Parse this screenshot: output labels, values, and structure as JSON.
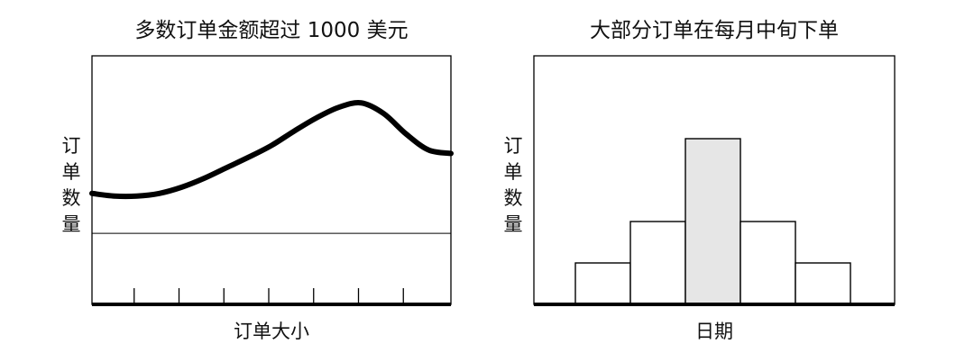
{
  "chart_data": [
    {
      "type": "line",
      "title": "多数订单金额超过 1000 美元",
      "xlabel": "订单大小",
      "ylabel": "订单数量",
      "x_ticks": 7,
      "reference_line": true,
      "series": [
        {
          "name": "",
          "x": [
            0,
            0.5,
            1,
            1.5,
            2,
            2.5,
            3,
            3.5,
            4,
            4.5,
            5,
            5.5,
            6,
            6.5,
            7,
            7.5,
            8
          ],
          "values": [
            0.45,
            0.42,
            0.42,
            0.45,
            0.52,
            0.62,
            0.74,
            0.86,
            0.99,
            1.15,
            1.3,
            1.42,
            1.47,
            1.35,
            1.12,
            0.94,
            0.9
          ]
        }
      ],
      "xlim": [
        0,
        8
      ],
      "ylim": [
        -0.8,
        2.0
      ]
    },
    {
      "type": "bar",
      "title": "大部分订单在每月中旬下单",
      "xlabel": "日期",
      "ylabel": "订单数量",
      "categories": [
        "",
        "",
        "",
        "",
        ""
      ],
      "values": [
        1,
        2,
        4,
        2,
        1
      ],
      "highlight_index": 2,
      "ylim": [
        0,
        6
      ]
    }
  ]
}
